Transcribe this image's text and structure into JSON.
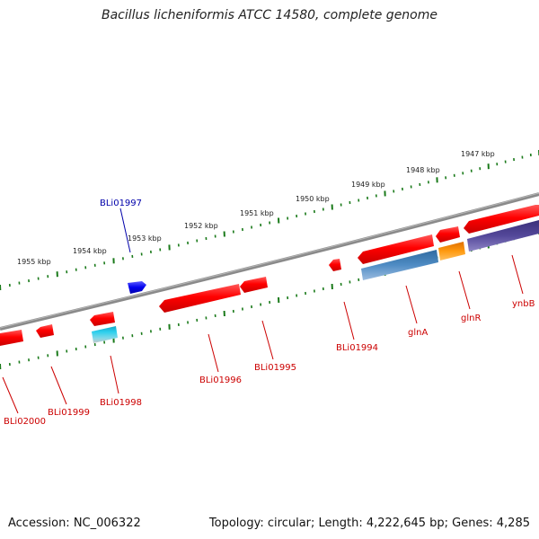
{
  "title": "Bacillus licheniformis ATCC 14580, complete genome",
  "accession": "Accession: NC_006322",
  "summary": "Topology: circular; Length: 4,222,645 bp; Genes: 4,285",
  "kbp_labels": [
    "1955 kbp",
    "1954 kbp",
    "1953 kbp",
    "1952 kbp",
    "1951 kbp",
    "1950 kbp",
    "1949 kbp",
    "1948 kbp",
    "1947 kbp"
  ],
  "genes": [
    {
      "label": "BLi02000",
      "color": "#e00000"
    },
    {
      "label": "BLi01999",
      "color": "#e00000"
    },
    {
      "label": "BLi01998",
      "color": "#e00000"
    },
    {
      "label": "BLi01997",
      "color": "#0000cc"
    },
    {
      "label": "BLi01996",
      "color": "#e00000"
    },
    {
      "label": "BLi01995",
      "color": "#e00000"
    },
    {
      "label": "BLi01994",
      "color": "#e00000"
    },
    {
      "label": "glnA",
      "color": "#e00000"
    },
    {
      "label": "glnR",
      "color": "#e00000"
    },
    {
      "label": "ynbB",
      "color": "#e00000"
    }
  ],
  "colors": {
    "backbone": "#888888",
    "tick": "#1a7a1a",
    "gene_red": "#ff1a1a",
    "gene_blue": "#1515e6",
    "feature_cyan": "#2ec8e6",
    "feature_steel": "#3f7fb5",
    "feature_orange": "#ff8c00",
    "feature_indigo": "#4a3f8f"
  }
}
